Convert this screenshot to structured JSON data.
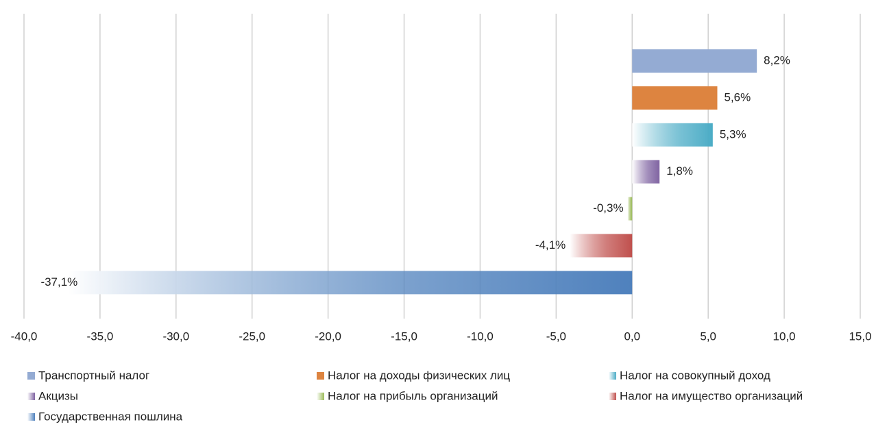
{
  "chart_data": {
    "type": "bar",
    "orientation": "horizontal",
    "xlim": [
      -40,
      15
    ],
    "xticks": [
      {
        "value": -40,
        "label": "-40,0"
      },
      {
        "value": -35,
        "label": "-35,0"
      },
      {
        "value": -30,
        "label": "-30,0"
      },
      {
        "value": -25,
        "label": "-25,0"
      },
      {
        "value": -20,
        "label": "-20,0"
      },
      {
        "value": -15,
        "label": "-15,0"
      },
      {
        "value": -10,
        "label": "-10,0"
      },
      {
        "value": -5,
        "label": "-5,0"
      },
      {
        "value": 0,
        "label": "0,0"
      },
      {
        "value": 5,
        "label": "5,0"
      },
      {
        "value": 10,
        "label": "10,0"
      },
      {
        "value": 15,
        "label": "15,0"
      }
    ],
    "grid": true,
    "legend": "bottom",
    "series": [
      {
        "name": "Транспортный налог",
        "color": "#94abd3",
        "fill": "solid",
        "values": [
          8.2
        ],
        "value_labels": [
          "8,2%"
        ]
      },
      {
        "name": "Налог на доходы физических лиц",
        "color": "#dd8440",
        "fill": "solid",
        "values": [
          5.6
        ],
        "value_labels": [
          "5,6%"
        ]
      },
      {
        "name": "Налог на совокупный доход",
        "color": "#4bacc6",
        "fill": "gradient",
        "values": [
          5.3
        ],
        "value_labels": [
          "5,3%"
        ]
      },
      {
        "name": "Акцизы",
        "color": "#8064a2",
        "fill": "gradient",
        "values": [
          1.8
        ],
        "value_labels": [
          "1,8%"
        ]
      },
      {
        "name": "Налог на прибыль организаций",
        "color": "#9bbb59",
        "fill": "gradient",
        "values": [
          -0.3
        ],
        "value_labels": [
          "-0,3%"
        ]
      },
      {
        "name": "Налог на имущество организаций",
        "color": "#c0504d",
        "fill": "gradient",
        "values": [
          -4.1
        ],
        "value_labels": [
          "-4,1%"
        ]
      },
      {
        "name": "Государственная пошлина",
        "color": "#4f81bd",
        "fill": "gradient",
        "values": [
          -37.1
        ],
        "value_labels": [
          "-37,1%"
        ]
      }
    ]
  }
}
